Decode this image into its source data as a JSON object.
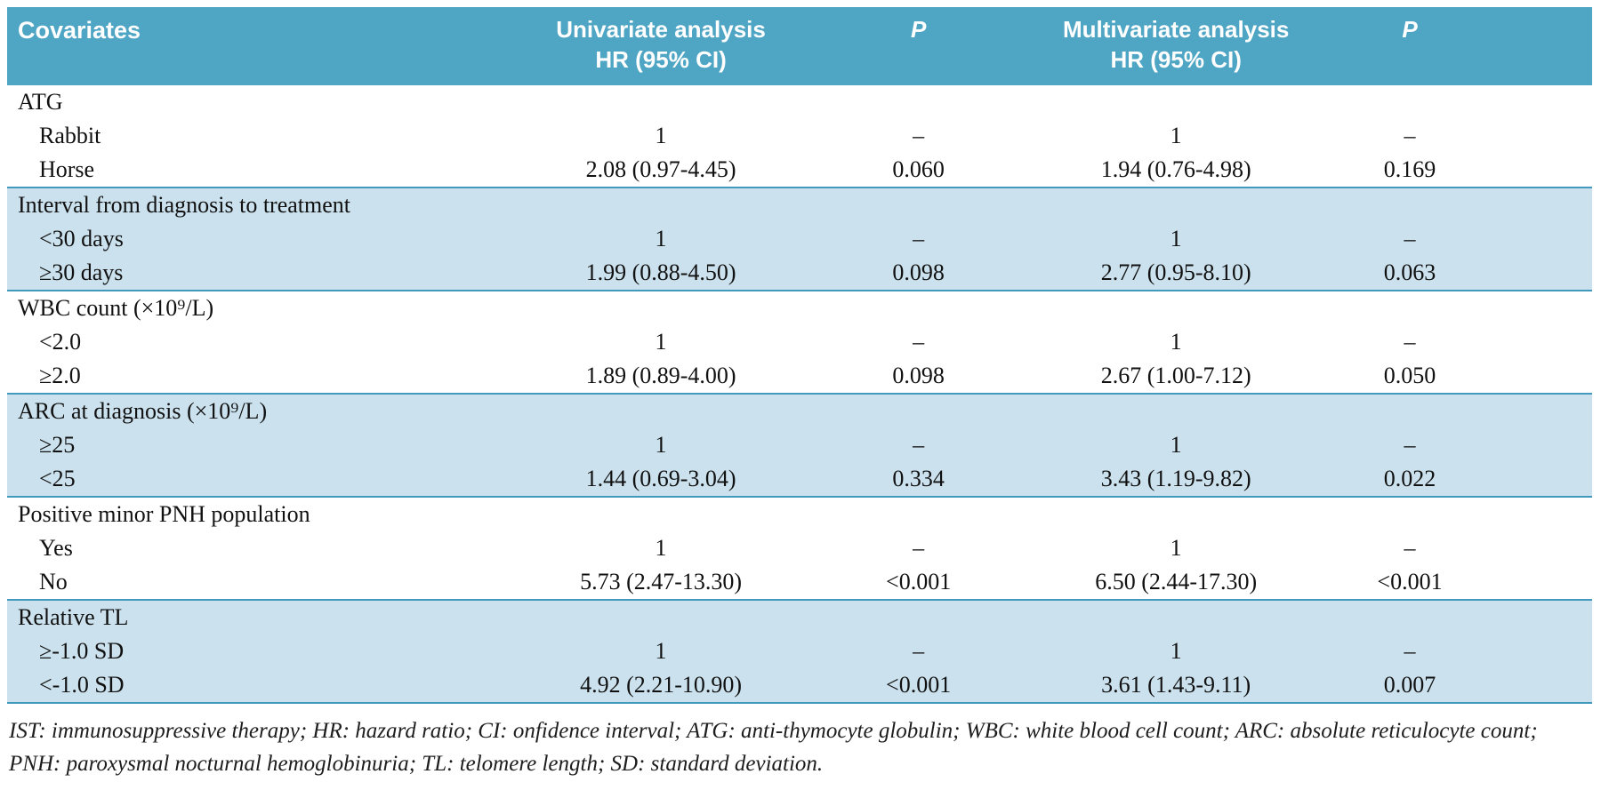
{
  "colors": {
    "header_bg": "#4FA5C4",
    "shaded_row_bg": "#CBE1ED",
    "separator_line": "#4399BC",
    "header_text": "#FFFFFF",
    "body_text": "#111111"
  },
  "table": {
    "header": {
      "covariates": "Covariates",
      "univariate": [
        "Univariate analysis",
        "HR (95% CI)"
      ],
      "p1": "P",
      "multivariate": [
        "Multivariate analysis",
        "HR (95% CI)"
      ],
      "p2": "P"
    },
    "groups": [
      {
        "title": "ATG",
        "shaded": false,
        "rows": [
          {
            "label": "Rabbit",
            "cells": [
              "1",
              "–",
              "1",
              "–"
            ]
          },
          {
            "label": "Horse",
            "cells": [
              "2.08 (0.97-4.45)",
              "0.060",
              "1.94 (0.76-4.98)",
              "0.169"
            ]
          }
        ]
      },
      {
        "title": "Interval from diagnosis to treatment",
        "shaded": true,
        "rows": [
          {
            "label": "<30 days",
            "cells": [
              "1",
              "–",
              "1",
              "–"
            ]
          },
          {
            "label": "≥30 days",
            "cells": [
              "1.99 (0.88-4.50)",
              "0.098",
              "2.77 (0.95-8.10)",
              "0.063"
            ]
          }
        ]
      },
      {
        "title": "WBC count (×10⁹/L)",
        "shaded": false,
        "rows": [
          {
            "label": "<2.0",
            "cells": [
              "1",
              "–",
              "1",
              "–"
            ]
          },
          {
            "label": "≥2.0",
            "cells": [
              "1.89 (0.89-4.00)",
              "0.098",
              "2.67 (1.00-7.12)",
              "0.050"
            ]
          }
        ]
      },
      {
        "title": "ARC at diagnosis (×10⁹/L)",
        "shaded": true,
        "rows": [
          {
            "label": "≥25",
            "cells": [
              "1",
              "–",
              "1",
              "–"
            ]
          },
          {
            "label": "<25",
            "cells": [
              "1.44 (0.69-3.04)",
              "0.334",
              "3.43 (1.19-9.82)",
              "0.022"
            ]
          }
        ]
      },
      {
        "title": "Positive minor PNH population",
        "shaded": false,
        "rows": [
          {
            "label": "Yes",
            "cells": [
              "1",
              "–",
              "1",
              "–"
            ]
          },
          {
            "label": "No",
            "cells": [
              "5.73 (2.47-13.30)",
              "<0.001",
              "6.50 (2.44-17.30)",
              "<0.001"
            ]
          }
        ]
      },
      {
        "title": "Relative TL",
        "shaded": true,
        "rows": [
          {
            "label": "≥-1.0 SD",
            "cells": [
              "1",
              "–",
              "1",
              "–"
            ]
          },
          {
            "label": "<-1.0 SD",
            "cells": [
              "4.92 (2.21-10.90)",
              "<0.001",
              "3.61 (1.43-9.11)",
              "0.007"
            ]
          }
        ]
      }
    ],
    "footnote": "IST: immunosuppressive therapy; HR: hazard ratio; CI: onfidence interval; ATG: anti-thymocyte globulin; WBC: white blood cell count; ARC: absolute reticulocyte count; PNH: paroxysmal nocturnal hemoglobinuria; TL: telomere length; SD: standard deviation."
  }
}
